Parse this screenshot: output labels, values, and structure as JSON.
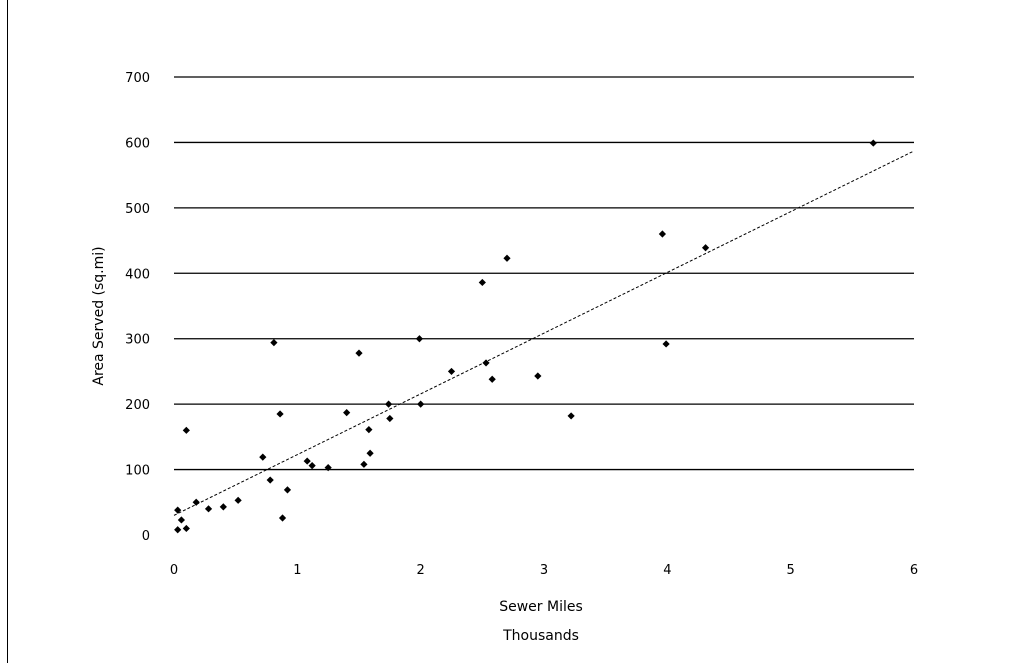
{
  "chart_data": {
    "type": "scatter",
    "xlabel": "Sewer Miles",
    "xlabel_sub": "Thousands",
    "ylabel": "Area Served (sq.mi)",
    "xlim": [
      0,
      6
    ],
    "ylim": [
      0,
      700
    ],
    "x_ticks": [
      "0",
      "1",
      "2",
      "3",
      "4",
      "5",
      "6"
    ],
    "y_ticks": [
      "0",
      "100",
      "200",
      "300",
      "400",
      "500",
      "600",
      "700"
    ],
    "grid": "horizontal",
    "trendline": {
      "x1": 0,
      "y1": 30,
      "x2": 6,
      "y2": 587
    },
    "points": [
      [
        0.03,
        38
      ],
      [
        0.03,
        8
      ],
      [
        0.06,
        23
      ],
      [
        0.1,
        10
      ],
      [
        0.1,
        160
      ],
      [
        0.18,
        50
      ],
      [
        0.28,
        40
      ],
      [
        0.4,
        43
      ],
      [
        0.52,
        53
      ],
      [
        0.72,
        119
      ],
      [
        0.78,
        84
      ],
      [
        0.81,
        294
      ],
      [
        0.86,
        185
      ],
      [
        0.88,
        26
      ],
      [
        0.92,
        69
      ],
      [
        1.08,
        113
      ],
      [
        1.12,
        106
      ],
      [
        1.25,
        103
      ],
      [
        1.4,
        187
      ],
      [
        1.5,
        278
      ],
      [
        1.54,
        108
      ],
      [
        1.58,
        161
      ],
      [
        1.59,
        125
      ],
      [
        1.74,
        200
      ],
      [
        1.75,
        178
      ],
      [
        1.99,
        300
      ],
      [
        2.0,
        200
      ],
      [
        2.25,
        250
      ],
      [
        2.5,
        386
      ],
      [
        2.53,
        263
      ],
      [
        2.58,
        238
      ],
      [
        2.7,
        423
      ],
      [
        2.95,
        243
      ],
      [
        3.22,
        182
      ],
      [
        3.96,
        460
      ],
      [
        3.99,
        292
      ],
      [
        4.31,
        439
      ],
      [
        5.67,
        599
      ]
    ]
  }
}
